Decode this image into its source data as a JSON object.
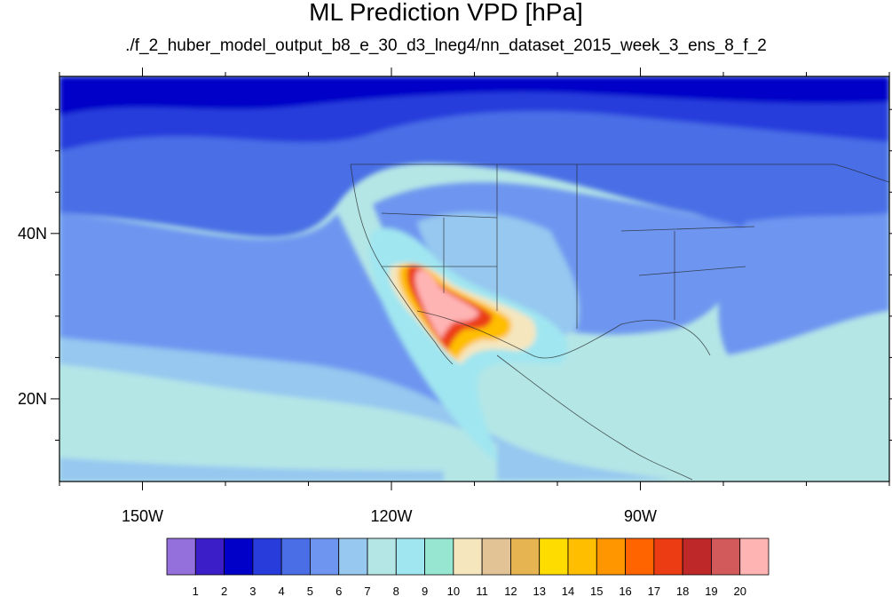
{
  "title": "ML Prediction VPD [hPa]",
  "subtitle": "./f_2_huber_model_output_b8_e_30_d3_lneg4/nn_dataset_2015_week_3_ens_8_f_2",
  "map": {
    "lon_range": [
      -160,
      -60
    ],
    "lat_range": [
      10,
      59
    ],
    "x_ticks": [
      {
        "lon": -150,
        "label": "150W"
      },
      {
        "lon": -120,
        "label": "120W"
      },
      {
        "lon": -90,
        "label": "90W"
      }
    ],
    "y_ticks": [
      {
        "lat": 40,
        "label": "40N"
      },
      {
        "lat": 20,
        "label": "20N"
      }
    ]
  },
  "colorbar": {
    "colors": [
      "#9470dc",
      "#3c1ec8",
      "#0000c8",
      "#283cdc",
      "#4a6ee6",
      "#6e96f0",
      "#96c8f0",
      "#b4e6e6",
      "#a0e6f0",
      "#96e6d2",
      "#f5e6be",
      "#e1c396",
      "#e6b450",
      "#ffdc00",
      "#ffbe00",
      "#ff9600",
      "#ff6400",
      "#eb3c14",
      "#be2828",
      "#d25a5a",
      "#ffb4b4"
    ],
    "labels": [
      "1",
      "2",
      "3",
      "4",
      "5",
      "6",
      "7",
      "8",
      "9",
      "10",
      "11",
      "12",
      "13",
      "14",
      "15",
      "16",
      "17",
      "18",
      "19",
      "20"
    ]
  }
}
